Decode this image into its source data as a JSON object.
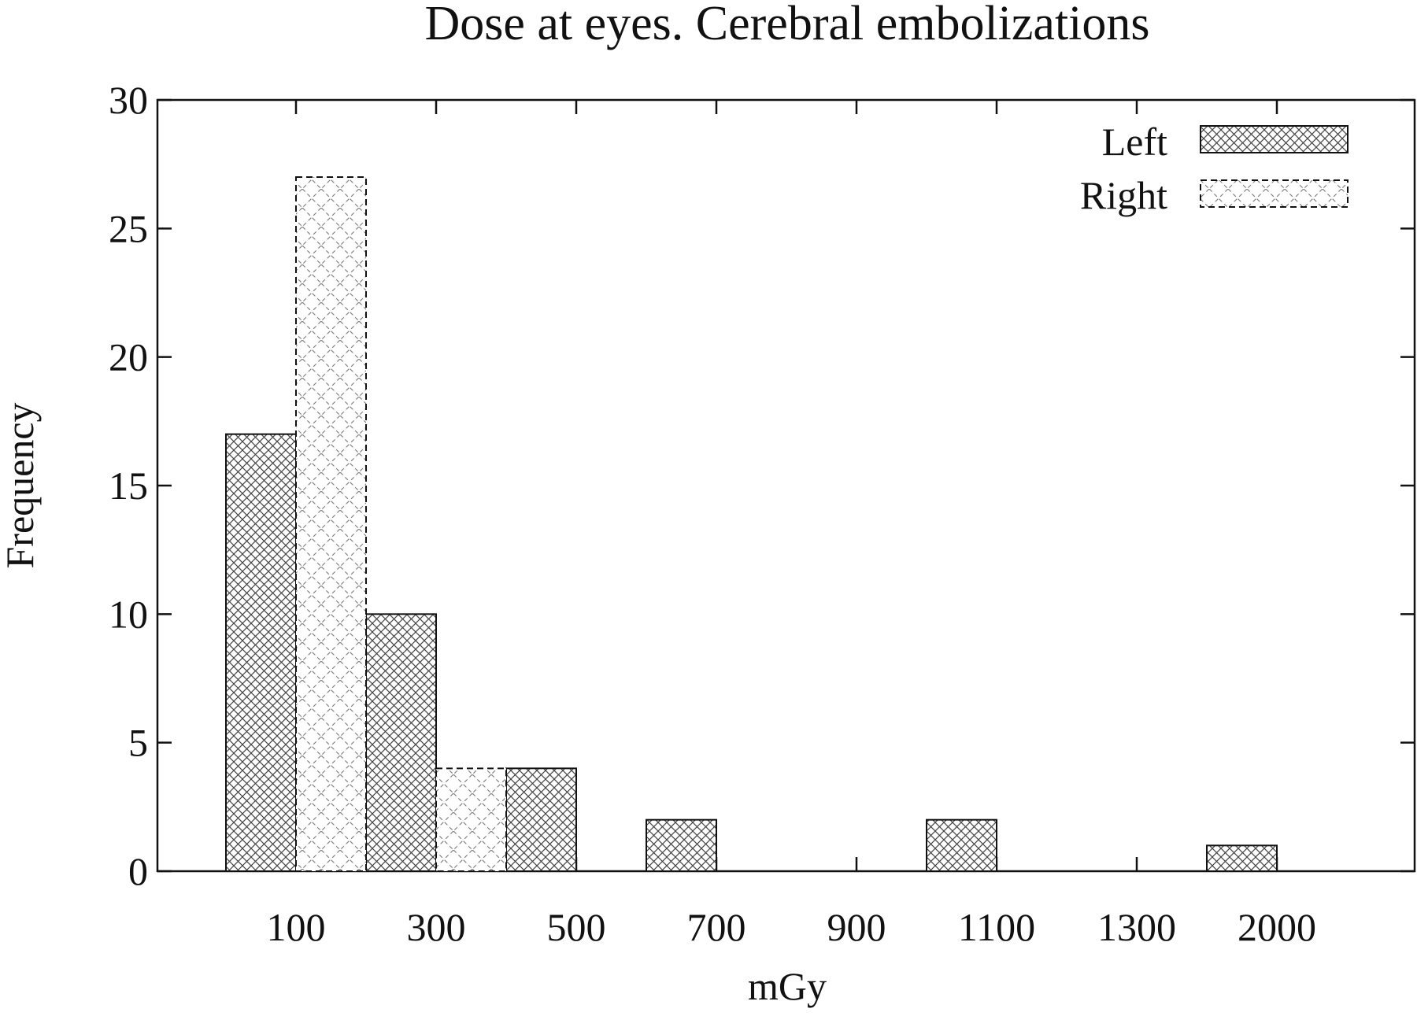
{
  "chart_data": {
    "type": "bar",
    "title": "Dose at eyes. Cerebral embolizations",
    "xlabel": "mGy",
    "ylabel": "Frequency",
    "categories": [
      "100",
      "300",
      "500",
      "700",
      "900",
      "1100",
      "1300",
      "2000"
    ],
    "series": [
      {
        "name": "Left",
        "pattern": "dense-crosshatch",
        "border": "solid",
        "values": [
          17,
          10,
          4,
          2,
          0,
          2,
          0,
          1
        ]
      },
      {
        "name": "Right",
        "pattern": "sparse-crosshatch",
        "border": "dashed",
        "values": [
          27,
          4,
          0,
          0,
          0,
          0,
          0,
          0
        ]
      }
    ],
    "ylim": [
      0,
      30
    ],
    "yticks": [
      0,
      5,
      10,
      15,
      20,
      25,
      30
    ],
    "grid": false,
    "legend_position": "top-right"
  }
}
